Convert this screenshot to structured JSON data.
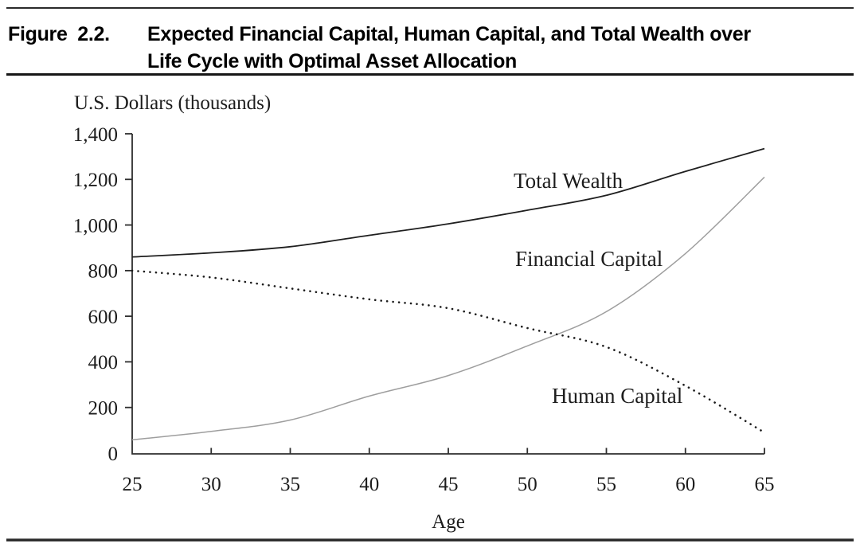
{
  "figure": {
    "label": "Figure 2.2.",
    "title_line1": "Expected Financial Capital, Human Capital, and Total Wealth over",
    "title_line2": "Life Cycle with Optimal Asset Allocation"
  },
  "chart_data": {
    "type": "line",
    "title": "Expected Financial Capital, Human Capital, and Total Wealth over Life Cycle with Optimal Asset Allocation",
    "xlabel": "Age",
    "ylabel": "U.S. Dollars (thousands)",
    "xlim": [
      25,
      65
    ],
    "ylim": [
      0,
      1400
    ],
    "xticks": [
      25,
      30,
      35,
      40,
      45,
      50,
      55,
      60,
      65
    ],
    "yticks": [
      0,
      200,
      400,
      600,
      800,
      1000,
      1200,
      1400
    ],
    "grid": false,
    "legend_position": "inline-curve-labels",
    "x": [
      25,
      30,
      35,
      40,
      45,
      50,
      55,
      60,
      65
    ],
    "series": [
      {
        "name": "Total Wealth",
        "style": "solid",
        "color": "#1f1f1f",
        "values": [
          860,
          878,
          905,
          955,
          1005,
          1065,
          1130,
          1235,
          1335
        ]
      },
      {
        "name": "Financial Capital",
        "style": "solid",
        "color": "#9e9e9e",
        "values": [
          58,
          95,
          145,
          250,
          340,
          470,
          620,
          875,
          1210
        ]
      },
      {
        "name": "Human Capital",
        "style": "dotted",
        "color": "#1c1c1c",
        "values": [
          800,
          770,
          722,
          674,
          635,
          548,
          465,
          295,
          90
        ]
      }
    ],
    "annotations": [
      {
        "text": "Total Wealth"
      },
      {
        "text": "Financial Capital"
      },
      {
        "text": "Human Capital"
      }
    ],
    "text_color": "#1c1c1c",
    "axis_color": "#2e2e2e"
  }
}
